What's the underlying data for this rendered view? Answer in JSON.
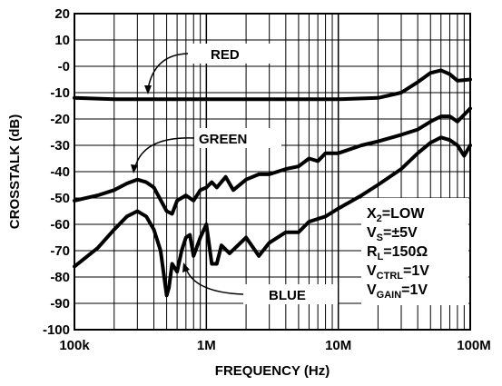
{
  "chart_data": {
    "type": "line",
    "xlabel": "FREQUENCY (Hz)",
    "ylabel": "CROSSTALK (dB)",
    "x_scale": "log",
    "xlim": [
      100000,
      100000000
    ],
    "ylim": [
      -100,
      20
    ],
    "grid": true,
    "x_ticks": [
      {
        "value": 100000,
        "label": "100k"
      },
      {
        "value": 1000000,
        "label": "1M"
      },
      {
        "value": 10000000,
        "label": "10M"
      },
      {
        "value": 100000000,
        "label": "100M"
      }
    ],
    "y_ticks": [
      {
        "value": 20,
        "label": "20"
      },
      {
        "value": 10,
        "label": "10"
      },
      {
        "value": 0,
        "label": "-0"
      },
      {
        "value": -10,
        "label": "-10"
      },
      {
        "value": -20,
        "label": "-20"
      },
      {
        "value": -30,
        "label": "-30"
      },
      {
        "value": -40,
        "label": "-40"
      },
      {
        "value": -50,
        "label": "-50"
      },
      {
        "value": -60,
        "label": "-60"
      },
      {
        "value": -70,
        "label": "-70"
      },
      {
        "value": -80,
        "label": "-80"
      },
      {
        "value": -90,
        "label": "-90"
      },
      {
        "value": -100,
        "label": "-100"
      }
    ],
    "series": [
      {
        "name": "RED",
        "x": [
          100000,
          200000,
          500000,
          1000000,
          2000000,
          5000000,
          10000000,
          20000000,
          30000000,
          40000000,
          50000000,
          60000000,
          70000000,
          80000000,
          100000000
        ],
        "y": [
          -12,
          -12.5,
          -12.5,
          -12.5,
          -12.5,
          -12.5,
          -12.5,
          -12,
          -10,
          -6,
          -2.5,
          -1.5,
          -3,
          -5.5,
          -5
        ]
      },
      {
        "name": "GREEN",
        "x": [
          100000,
          150000,
          200000,
          250000,
          300000,
          350000,
          400000,
          500000,
          550000,
          600000,
          700000,
          800000,
          900000,
          1000000,
          1100000,
          1200000,
          1400000,
          1600000,
          2000000,
          2500000,
          3000000,
          4000000,
          5000000,
          6000000,
          7000000,
          8000000,
          10000000,
          15000000,
          20000000,
          30000000,
          40000000,
          50000000,
          60000000,
          70000000,
          80000000,
          100000000
        ],
        "y": [
          -51,
          -49,
          -47,
          -44.5,
          -43,
          -44,
          -46,
          -55,
          -56,
          -51,
          -49,
          -51,
          -47,
          -46,
          -44,
          -46,
          -42,
          -47,
          -43,
          -41,
          -41,
          -39,
          -38,
          -35,
          -36,
          -33,
          -33,
          -30,
          -28.5,
          -26,
          -24,
          -21,
          -19,
          -19,
          -21,
          -16
        ]
      },
      {
        "name": "BLUE",
        "x": [
          100000,
          150000,
          200000,
          250000,
          300000,
          350000,
          400000,
          450000,
          500000,
          520000,
          550000,
          600000,
          650000,
          700000,
          750000,
          800000,
          900000,
          1000000,
          1100000,
          1200000,
          1300000,
          1500000,
          2000000,
          2500000,
          3000000,
          4000000,
          5000000,
          6000000,
          8000000,
          10000000,
          15000000,
          20000000,
          30000000,
          40000000,
          50000000,
          60000000,
          70000000,
          80000000,
          90000000,
          100000000
        ],
        "y": [
          -76,
          -69,
          -62,
          -57,
          -55,
          -57,
          -62,
          -70,
          -87,
          -84,
          -75,
          -78,
          -70,
          -65,
          -64,
          -72,
          -65,
          -60,
          -75,
          -75,
          -68,
          -71,
          -65,
          -72,
          -67,
          -63,
          -63,
          -59,
          -57,
          -54,
          -49,
          -45,
          -39,
          -33,
          -29,
          -27,
          -28,
          -30,
          -34,
          -30
        ]
      }
    ],
    "annotations": [
      {
        "label": "RED",
        "x": 300000,
        "y": -12.5
      },
      {
        "label": "GREEN",
        "x": 300000,
        "y": -43
      },
      {
        "label": "BLUE",
        "x": 700000,
        "y": -78
      }
    ],
    "conditions": [
      {
        "main": "X",
        "sub": "2",
        "rest": "=LOW"
      },
      {
        "main": "V",
        "sub": "S",
        "rest": "=±5V"
      },
      {
        "main": "R",
        "sub": "L",
        "rest": "=150Ω"
      },
      {
        "main": "V",
        "sub": "CTRL",
        "rest": "=1V"
      },
      {
        "main": "V",
        "sub": "GAIN",
        "rest": "=1V"
      }
    ]
  },
  "colors": {
    "line": "#000000",
    "grid": "#000000",
    "background": "#ffffff"
  }
}
